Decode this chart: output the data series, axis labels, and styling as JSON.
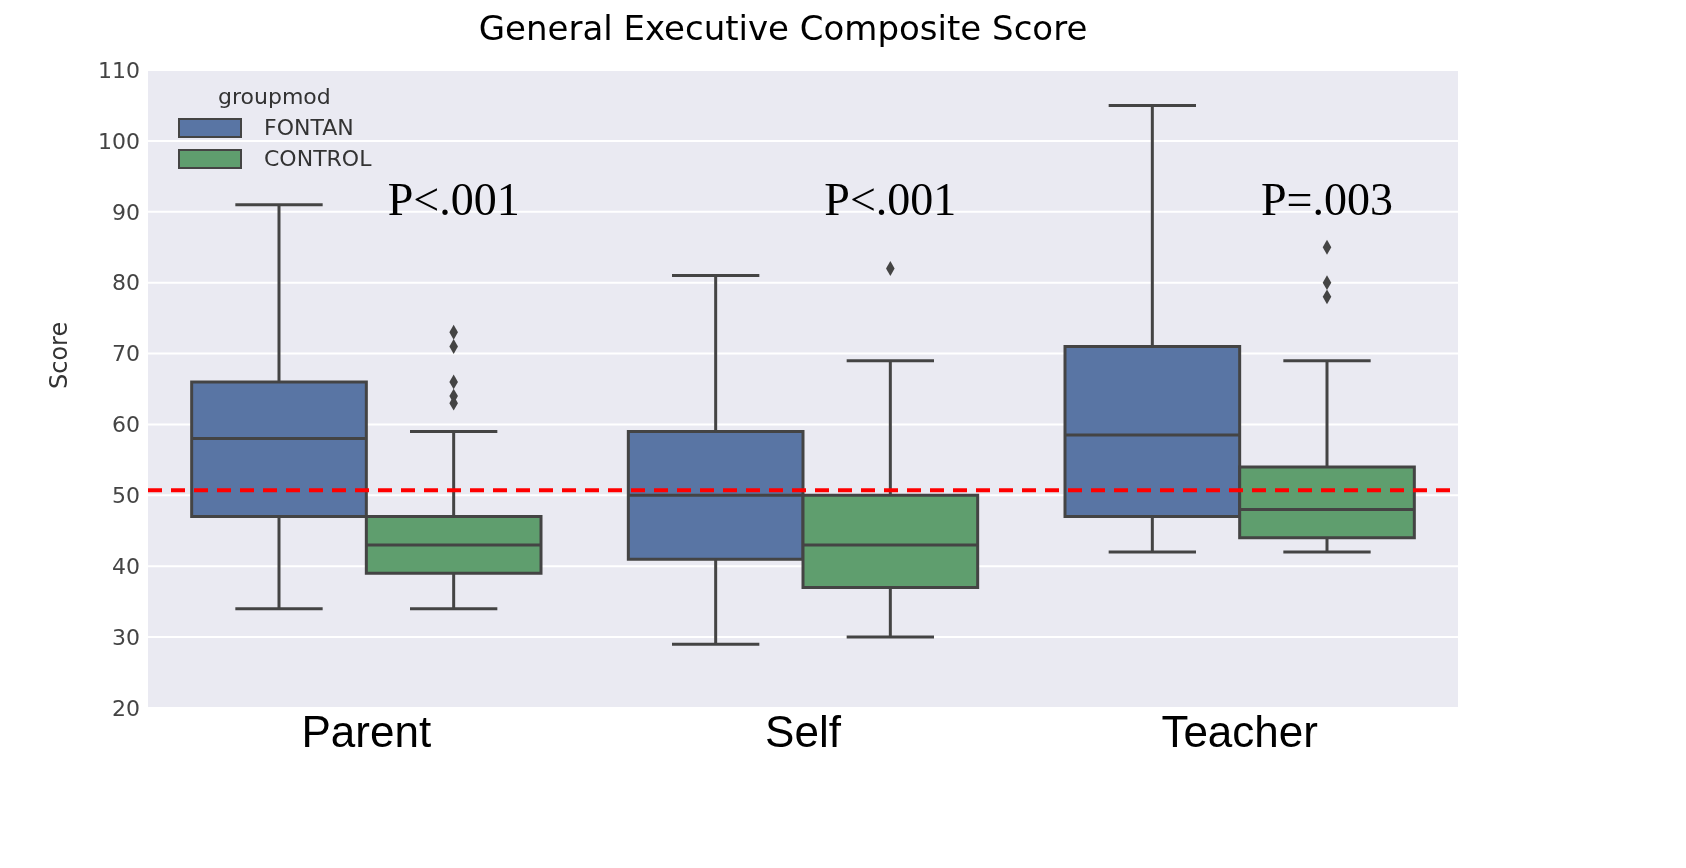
{
  "chart_data": {
    "type": "box",
    "title": "General Executive Composite Score",
    "ylabel": "Score",
    "legend_title": "groupmod",
    "categories": [
      "Parent",
      "Self",
      "Teacher"
    ],
    "series": [
      {
        "name": "FONTAN",
        "color": "#5975a4",
        "boxes": [
          {
            "low": 34,
            "q1": 47,
            "median": 58,
            "q3": 66,
            "high": 91
          },
          {
            "low": 29,
            "q1": 41,
            "median": 50,
            "q3": 59,
            "high": 81
          },
          {
            "low": 42,
            "q1": 47,
            "median": 58.5,
            "q3": 71,
            "high": 105
          }
        ]
      },
      {
        "name": "CONTROL",
        "color": "#5f9e6e",
        "boxes": [
          {
            "low": 34,
            "q1": 39,
            "median": 43,
            "q3": 47,
            "high": 59,
            "outliers": [
              63,
              64,
              66,
              71,
              73
            ]
          },
          {
            "low": 30,
            "q1": 37,
            "median": 43,
            "q3": 50,
            "high": 69,
            "outliers": [
              82
            ]
          },
          {
            "low": 42,
            "q1": 44,
            "median": 48,
            "q3": 54,
            "high": 69,
            "outliers": [
              78,
              80,
              85
            ]
          }
        ]
      }
    ],
    "ylim": [
      20,
      110
    ],
    "yticks": [
      20,
      30,
      40,
      50,
      60,
      70,
      80,
      90,
      100,
      110
    ],
    "grid": "y",
    "legend": "top left",
    "marker": "diamond",
    "ref_lines": [
      {
        "axis": "y",
        "value": 50.7,
        "color": "#ff0000",
        "line_style": "dashed"
      }
    ],
    "annotations": [
      "P<.001",
      "P<.001",
      "P=.003"
    ]
  }
}
